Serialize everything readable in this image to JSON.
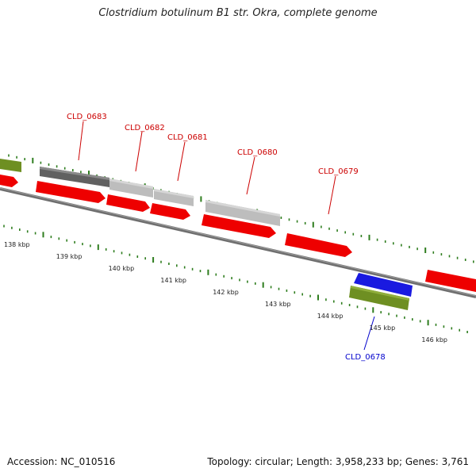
{
  "title": "Clostridium botulinum B1 str. Okra, complete genome",
  "footer": {
    "accession": "Accession: NC_010516",
    "summary": "Topology: circular; Length: 3,958,233 bp; Genes: 3,761"
  },
  "colors": {
    "backbone": "#777777",
    "cds_red": "#ee0000",
    "cds_blue": "#1a1ae0",
    "gene_green": "#6e8f22",
    "gene_dark_gray": "#666666",
    "gene_light_gray": "#bdbdbd",
    "tick_green": "#2e7d1e",
    "label_red": "#cc0000",
    "label_blue": "#0000cc"
  },
  "scale": {
    "unit": "kbp",
    "ticks": [
      {
        "value": 138,
        "label": "138 kbp"
      },
      {
        "value": 139,
        "label": "139 kbp"
      },
      {
        "value": 140,
        "label": "140 kbp"
      },
      {
        "value": 141,
        "label": "141 kbp"
      },
      {
        "value": 142,
        "label": "142 kbp"
      },
      {
        "value": 143,
        "label": "143 kbp"
      },
      {
        "value": 144,
        "label": "144 kbp"
      },
      {
        "value": 145,
        "label": "145 kbp"
      },
      {
        "value": 146,
        "label": "146 kbp"
      }
    ]
  },
  "gene_labels": [
    {
      "name": "CLD_0683",
      "color": "label_red"
    },
    {
      "name": "CLD_0682",
      "color": "label_red"
    },
    {
      "name": "CLD_0681",
      "color": "label_red"
    },
    {
      "name": "CLD_0680",
      "color": "label_red"
    },
    {
      "name": "CLD_0679",
      "color": "label_red"
    },
    {
      "name": "CLD_0678",
      "color": "label_blue"
    }
  ]
}
